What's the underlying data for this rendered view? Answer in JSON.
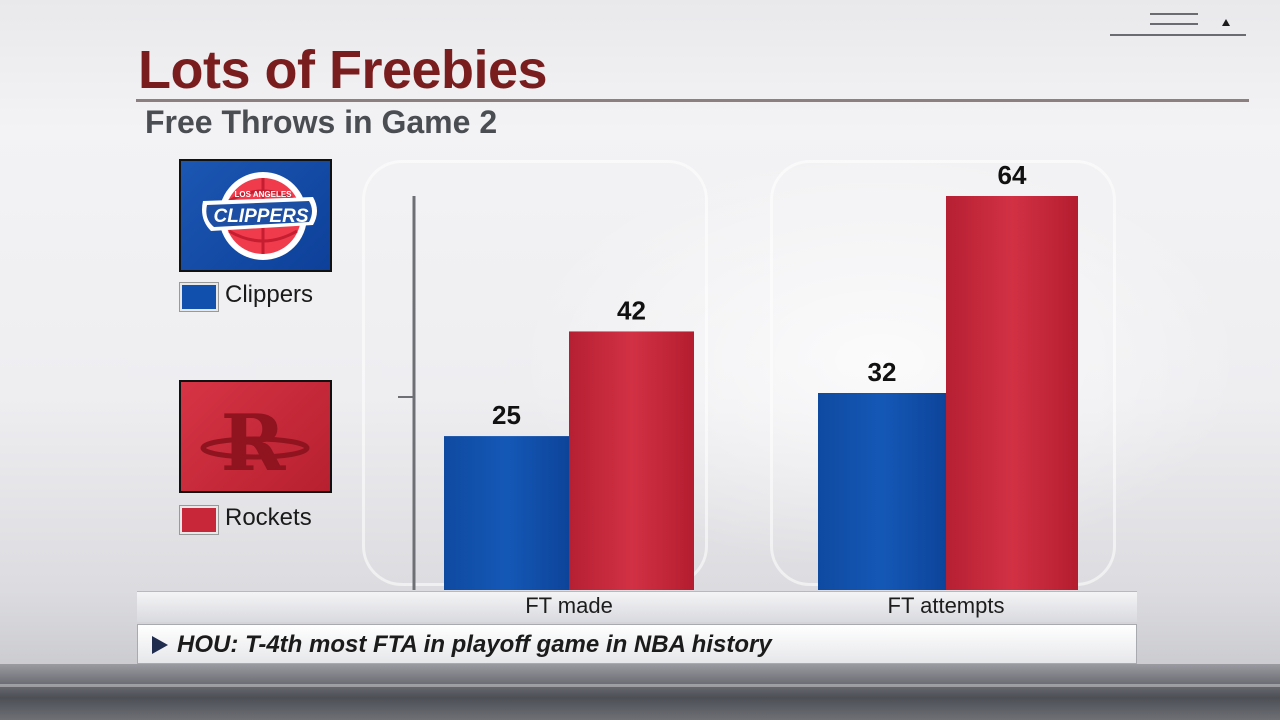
{
  "title": "Lots of Freebies",
  "subtitle": "Free Throws in Game 2",
  "logos": {
    "clippers": {
      "name": "clippers-logo",
      "line1": "LOS ANGELES",
      "line2": "CLIPPERS"
    },
    "rockets": {
      "name": "rockets-logo",
      "mark": "R"
    }
  },
  "legend": [
    {
      "label": "Clippers",
      "color": "#1150ad"
    },
    {
      "label": "Rockets",
      "color": "#c8273a"
    }
  ],
  "note": "HOU: T-4th most FTA in playoff game in NBA history",
  "colors": {
    "title": "#7a1d1f",
    "clippers": "#1150ad",
    "rockets": "#c8273a"
  },
  "chart_data": {
    "type": "bar",
    "categories": [
      "FT made",
      "FT attempts"
    ],
    "series": [
      {
        "name": "Clippers",
        "color": "#1150ad",
        "values": [
          25,
          32
        ]
      },
      {
        "name": "Rockets",
        "color": "#c8273a",
        "values": [
          42,
          64
        ]
      }
    ],
    "ylim": [
      0,
      64
    ],
    "grid": false,
    "data_labels": true
  }
}
